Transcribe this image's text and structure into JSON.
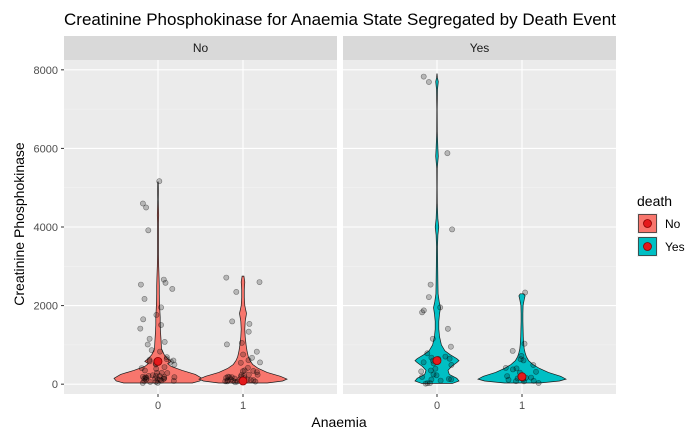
{
  "chart_data": {
    "type": "violin",
    "title": "Creatinine Phosphokinase for Anaemia State Segregated by Death Event",
    "xlabel": "Anaemia",
    "ylabel": "Creatinine Phosphokinase",
    "categories": [
      "0",
      "1"
    ],
    "ylim": [
      -250,
      8250
    ],
    "yticks": [
      0,
      2000,
      4000,
      6000,
      8000
    ],
    "grid": true,
    "legend": {
      "title": "death",
      "placement": "right",
      "entries": [
        {
          "label": "No",
          "color": "#F8766D"
        },
        {
          "label": "Yes",
          "color": "#00BFC4"
        }
      ]
    },
    "facets": [
      {
        "label": "No",
        "fill": "#F8766D",
        "groups": [
          {
            "category": "0",
            "mean": 580,
            "profile": [
              [
                30,
                0.78
              ],
              [
                80,
                0.95
              ],
              [
                150,
                1.0
              ],
              [
                250,
                0.85
              ],
              [
                350,
                0.55
              ],
              [
                450,
                0.3
              ],
              [
                520,
                0.22
              ],
              [
                580,
                0.3
              ],
              [
                650,
                0.22
              ],
              [
                750,
                0.14
              ],
              [
                900,
                0.08
              ],
              [
                1100,
                0.07
              ],
              [
                1300,
                0.06
              ],
              [
                1500,
                0.05
              ],
              [
                1700,
                0.05
              ],
              [
                1900,
                0.04
              ],
              [
                2100,
                0.035
              ],
              [
                2300,
                0.03
              ],
              [
                2500,
                0.03
              ],
              [
                2700,
                0.025
              ],
              [
                3000,
                0.015
              ],
              [
                3300,
                0.012
              ],
              [
                3700,
                0.012
              ],
              [
                4100,
                0.012
              ],
              [
                4300,
                0.015
              ],
              [
                4500,
                0.012
              ],
              [
                4700,
                0.006
              ],
              [
                4900,
                0.008
              ],
              [
                5100,
                0.006
              ],
              [
                5150,
                0.003
              ]
            ],
            "points": [
              40,
              55,
              60,
              70,
              80,
              85,
              90,
              100,
              110,
              115,
              120,
              130,
              140,
              145,
              150,
              160,
              170,
              180,
              190,
              200,
              210,
              230,
              250,
              260,
              280,
              300,
              320,
              350,
              400,
              450,
              480,
              500,
              560,
              580,
              590,
              600,
              610,
              620,
              640,
              700,
              780,
              850,
              1000,
              1100,
              1200,
              1400,
              1500,
              1700,
              1800,
              1950,
              2200,
              2400,
              2500,
              2600,
              2700,
              3950,
              4450,
              4550,
              5200
            ]
          },
          {
            "category": "1",
            "mean": 80,
            "profile": [
              [
                30,
                0.55
              ],
              [
                80,
                0.9
              ],
              [
                130,
                1.0
              ],
              [
                200,
                0.85
              ],
              [
                300,
                0.55
              ],
              [
                400,
                0.35
              ],
              [
                500,
                0.22
              ],
              [
                600,
                0.16
              ],
              [
                700,
                0.12
              ],
              [
                850,
                0.09
              ],
              [
                1000,
                0.07
              ],
              [
                1200,
                0.05
              ],
              [
                1400,
                0.04
              ],
              [
                1600,
                0.05
              ],
              [
                1800,
                0.08
              ],
              [
                1900,
                0.06
              ],
              [
                2000,
                0.04
              ],
              [
                2200,
                0.03
              ],
              [
                2400,
                0.03
              ],
              [
                2600,
                0.04
              ],
              [
                2750,
                0.02
              ]
            ],
            "points": [
              30,
              40,
              50,
              55,
              60,
              65,
              70,
              75,
              80,
              90,
              100,
              105,
              110,
              120,
              130,
              140,
              150,
              160,
              170,
              180,
              190,
              200,
              220,
              240,
              260,
              280,
              300,
              350,
              380,
              400,
              450,
              500,
              560,
              600,
              700,
              750,
              850,
              1000,
              1100,
              1300,
              1500,
              1600,
              2300,
              2600,
              2700
            ]
          }
        ]
      },
      {
        "label": "Yes",
        "fill": "#00BFC4",
        "groups": [
          {
            "category": "0",
            "mean": 600,
            "profile": [
              [
                20,
                0.35
              ],
              [
                80,
                0.5
              ],
              [
                150,
                0.45
              ],
              [
                250,
                0.28
              ],
              [
                350,
                0.25
              ],
              [
                450,
                0.33
              ],
              [
                550,
                0.45
              ],
              [
                600,
                0.5
              ],
              [
                650,
                0.45
              ],
              [
                750,
                0.3
              ],
              [
                850,
                0.18
              ],
              [
                1000,
                0.1
              ],
              [
                1200,
                0.06
              ],
              [
                1400,
                0.04
              ],
              [
                1600,
                0.04
              ],
              [
                1800,
                0.06
              ],
              [
                1950,
                0.08
              ],
              [
                2100,
                0.05
              ],
              [
                2300,
                0.025
              ],
              [
                2600,
                0.02
              ],
              [
                3000,
                0.015
              ],
              [
                3500,
                0.012
              ],
              [
                3800,
                0.02
              ],
              [
                4000,
                0.04
              ],
              [
                4200,
                0.02
              ],
              [
                4600,
                0.006
              ],
              [
                5000,
                0.005
              ],
              [
                5500,
                0.006
              ],
              [
                5800,
                0.03
              ],
              [
                6000,
                0.02
              ],
              [
                6400,
                0.006
              ],
              [
                7000,
                0.005
              ],
              [
                7500,
                0.012
              ],
              [
                7700,
                0.03
              ],
              [
                7800,
                0.01
              ],
              [
                7900,
                0.003
              ]
            ],
            "points": [
              30,
              50,
              70,
              80,
              100,
              110,
              130,
              150,
              200,
              250,
              300,
              350,
              400,
              450,
              500,
              550,
              580,
              600,
              620,
              650,
              700,
              800,
              1000,
              1200,
              1400,
              1800,
              1900,
              2000,
              2200,
              2500,
              3950,
              5900,
              7700,
              7850
            ]
          },
          {
            "category": "1",
            "mean": 190,
            "profile": [
              [
                30,
                0.4
              ],
              [
                80,
                0.85
              ],
              [
                130,
                1.0
              ],
              [
                200,
                0.88
              ],
              [
                300,
                0.6
              ],
              [
                400,
                0.4
              ],
              [
                500,
                0.25
              ],
              [
                600,
                0.15
              ],
              [
                700,
                0.1
              ],
              [
                800,
                0.07
              ],
              [
                900,
                0.05
              ],
              [
                1000,
                0.04
              ],
              [
                1200,
                0.03
              ],
              [
                1400,
                0.025
              ],
              [
                1600,
                0.02
              ],
              [
                1800,
                0.02
              ],
              [
                2000,
                0.025
              ],
              [
                2150,
                0.05
              ],
              [
                2250,
                0.07
              ],
              [
                2300,
                0.04
              ]
            ],
            "points": [
              40,
              60,
              80,
              100,
              110,
              130,
              150,
              170,
              190,
              210,
              230,
              250,
              300,
              350,
              400,
              450,
              500,
              560,
              600,
              700,
              850,
              1000,
              2350
            ]
          }
        ]
      }
    ]
  }
}
